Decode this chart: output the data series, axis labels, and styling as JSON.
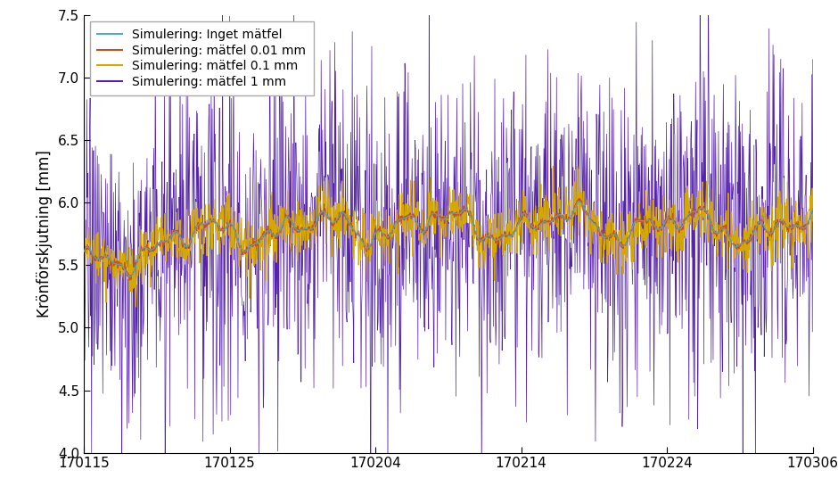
{
  "title": "",
  "ylabel": "Krönförskjutning [mm]",
  "xlabel": "",
  "ylim": [
    4.0,
    7.5
  ],
  "yticks": [
    4.0,
    4.5,
    5.0,
    5.5,
    6.0,
    6.5,
    7.0,
    7.5
  ],
  "xtick_labels": [
    "170115",
    "170125",
    "170204",
    "170214",
    "170224",
    "170306"
  ],
  "legend_labels": [
    "Simulering: Inget mätfel",
    "Simulering: mätfel 0.01 mm",
    "Simulering: mätfel 0.1 mm",
    "Simulering: mätfel 1 mm"
  ],
  "colors": [
    "#4daacc",
    "#c85020",
    "#d4a800",
    "#5522aa"
  ],
  "linewidths": [
    0.8,
    0.8,
    0.8,
    0.5
  ],
  "n_points": 1500,
  "background_color": "#ffffff",
  "figsize": [
    9.4,
    5.64
  ],
  "dpi": 100
}
